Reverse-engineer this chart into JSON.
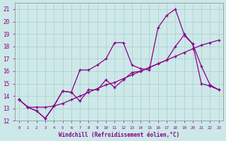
{
  "xlabel": "Windchill (Refroidissement éolien,°C)",
  "bg_color": "#cde8e8",
  "line_color": "#880088",
  "grid_color": "#aacccc",
  "xlim": [
    -0.5,
    23.5
  ],
  "ylim": [
    12,
    21.5
  ],
  "xticks": [
    0,
    1,
    2,
    3,
    4,
    5,
    6,
    7,
    8,
    9,
    10,
    11,
    12,
    13,
    14,
    15,
    16,
    17,
    18,
    19,
    20,
    21,
    22,
    23
  ],
  "yticks": [
    12,
    13,
    14,
    15,
    16,
    17,
    18,
    19,
    20,
    21
  ],
  "series1_x": [
    0,
    1,
    2,
    3,
    4,
    5,
    6,
    7,
    8,
    9,
    10,
    11,
    12,
    13,
    14,
    15,
    16,
    17,
    18,
    19,
    20,
    21,
    22,
    23
  ],
  "series1_y": [
    13.7,
    13.1,
    12.8,
    12.2,
    13.2,
    14.4,
    14.3,
    16.1,
    16.1,
    16.5,
    17.0,
    18.3,
    18.3,
    16.5,
    16.2,
    16.1,
    19.5,
    20.5,
    21.0,
    19.0,
    18.2,
    15.0,
    14.8,
    14.5
  ],
  "series2_x": [
    0,
    1,
    2,
    3,
    4,
    5,
    6,
    7,
    8,
    9,
    10,
    11,
    12,
    13,
    14,
    15,
    16,
    17,
    18,
    19,
    20,
    21,
    22,
    23
  ],
  "series2_y": [
    13.7,
    13.1,
    13.1,
    13.1,
    13.2,
    13.4,
    13.7,
    14.0,
    14.3,
    14.6,
    14.9,
    15.1,
    15.4,
    15.7,
    16.0,
    16.3,
    16.6,
    16.9,
    17.2,
    17.5,
    17.8,
    18.1,
    18.3,
    18.5
  ],
  "series3_x": [
    0,
    1,
    2,
    3,
    4,
    5,
    6,
    7,
    8,
    9,
    10,
    11,
    12,
    13,
    14,
    15,
    16,
    17,
    18,
    19,
    20,
    21,
    22,
    23
  ],
  "series3_y": [
    13.7,
    13.1,
    12.8,
    12.2,
    13.2,
    14.4,
    14.3,
    13.6,
    14.5,
    14.5,
    15.3,
    14.7,
    15.3,
    15.9,
    16.0,
    16.3,
    16.6,
    16.9,
    18.0,
    18.9,
    18.2,
    16.4,
    14.9,
    14.5
  ]
}
